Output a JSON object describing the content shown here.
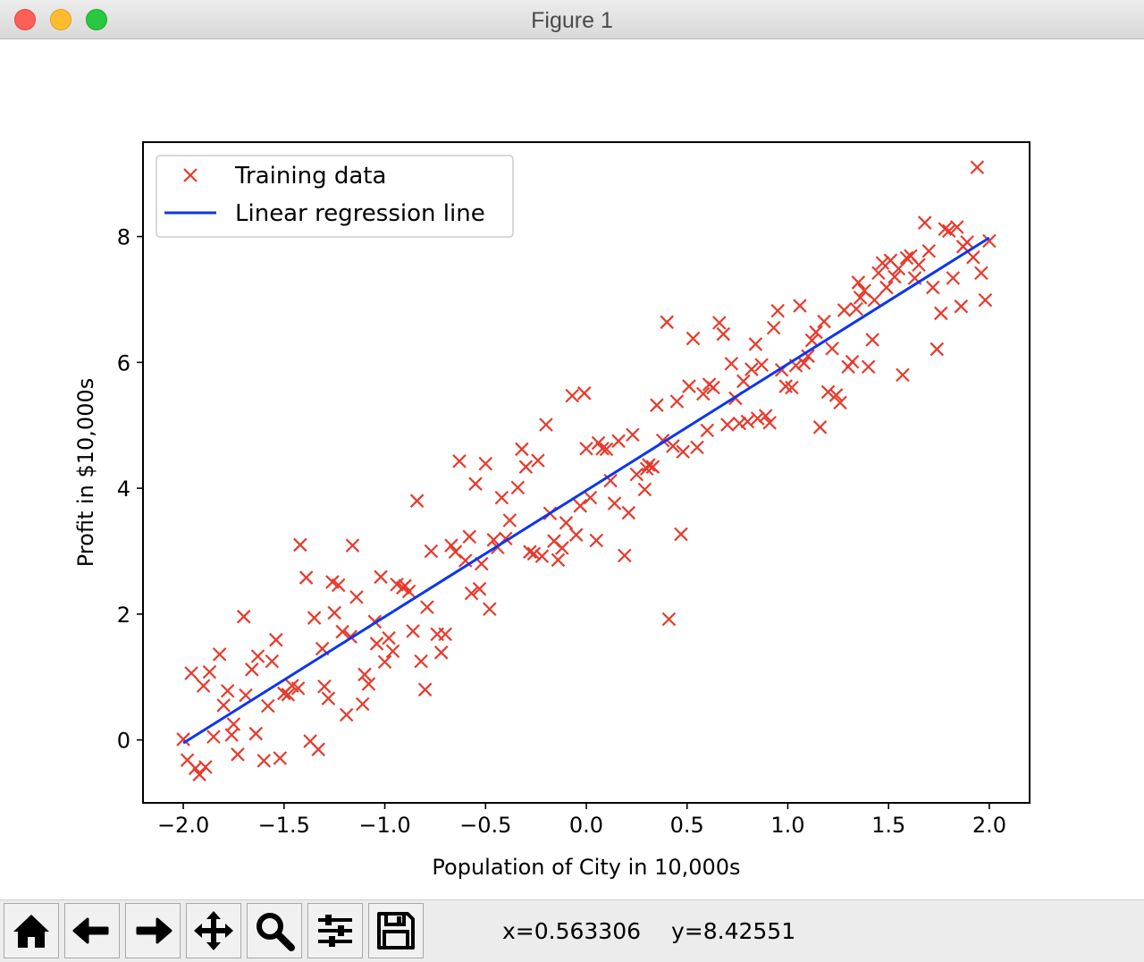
{
  "window": {
    "title": "Figure 1"
  },
  "toolbar": {
    "buttons": [
      {
        "icon": "home-icon"
      },
      {
        "icon": "back-arrow-icon"
      },
      {
        "icon": "forward-arrow-icon"
      },
      {
        "icon": "pan-icon"
      },
      {
        "icon": "zoom-icon"
      },
      {
        "icon": "subplots-config-icon"
      },
      {
        "icon": "save-icon"
      }
    ],
    "coord_x": "x=0.563306",
    "coord_y": "y=8.42551"
  },
  "chart_data": {
    "type": "scatter",
    "title": "",
    "xlabel": "Population of City in 10,000s",
    "ylabel": "Profit in $10,000s",
    "xlim": [
      -2.2,
      2.2
    ],
    "ylim": [
      -1.0,
      9.5
    ],
    "xticks": [
      -2.0,
      -1.5,
      -1.0,
      -0.5,
      0.0,
      0.5,
      1.0,
      1.5,
      2.0
    ],
    "xtick_labels": [
      "−2.0",
      "−1.5",
      "−1.0",
      "−0.5",
      "0.0",
      "0.5",
      "1.0",
      "1.5",
      "2.0"
    ],
    "yticks": [
      0,
      2,
      4,
      6,
      8
    ],
    "ytick_labels": [
      "0",
      "2",
      "4",
      "6",
      "8"
    ],
    "grid": false,
    "legend_position": "upper-left",
    "colors": {
      "scatter": "#e8392b",
      "line": "#0b36f0"
    },
    "series": [
      {
        "name": "Training data",
        "kind": "scatter",
        "marker": "x",
        "points": [
          [
            -2.0,
            0.01
          ],
          [
            -1.98,
            -0.32
          ],
          [
            -1.96,
            1.06
          ],
          [
            -1.94,
            -0.45
          ],
          [
            -1.92,
            -0.55
          ],
          [
            -1.9,
            0.86
          ],
          [
            -1.89,
            -0.43
          ],
          [
            -1.87,
            1.08
          ],
          [
            -1.85,
            0.05
          ],
          [
            -1.82,
            1.36
          ],
          [
            -1.8,
            0.55
          ],
          [
            -1.78,
            0.78
          ],
          [
            -1.76,
            0.08
          ],
          [
            -1.75,
            0.25
          ],
          [
            -1.73,
            -0.23
          ],
          [
            -1.7,
            1.96
          ],
          [
            -1.69,
            0.71
          ],
          [
            -1.66,
            1.12
          ],
          [
            -1.64,
            0.1
          ],
          [
            -1.63,
            1.33
          ],
          [
            -1.6,
            -0.33
          ],
          [
            -1.58,
            0.54
          ],
          [
            -1.56,
            1.25
          ],
          [
            -1.54,
            1.59
          ],
          [
            -1.52,
            -0.29
          ],
          [
            -1.5,
            0.74
          ],
          [
            -1.48,
            0.72
          ],
          [
            -1.46,
            0.86
          ],
          [
            -1.43,
            0.82
          ],
          [
            -1.42,
            3.1
          ],
          [
            -1.39,
            2.58
          ],
          [
            -1.37,
            -0.02
          ],
          [
            -1.35,
            1.94
          ],
          [
            -1.33,
            -0.15
          ],
          [
            -1.31,
            1.45
          ],
          [
            -1.3,
            0.85
          ],
          [
            -1.28,
            0.66
          ],
          [
            -1.26,
            2.51
          ],
          [
            -1.25,
            2.02
          ],
          [
            -1.23,
            2.46
          ],
          [
            -1.21,
            1.72
          ],
          [
            -1.19,
            0.4
          ],
          [
            -1.17,
            1.64
          ],
          [
            -1.16,
            3.09
          ],
          [
            -1.14,
            2.27
          ],
          [
            -1.11,
            0.57
          ],
          [
            -1.1,
            1.04
          ],
          [
            -1.08,
            0.89
          ],
          [
            -1.05,
            1.88
          ],
          [
            -1.04,
            1.53
          ],
          [
            -1.02,
            2.59
          ],
          [
            -1.0,
            1.24
          ],
          [
            -0.98,
            1.62
          ],
          [
            -0.96,
            1.41
          ],
          [
            -0.94,
            2.47
          ],
          [
            -0.91,
            2.42
          ],
          [
            -0.9,
            2.45
          ],
          [
            -0.88,
            2.36
          ],
          [
            -0.86,
            1.73
          ],
          [
            -0.84,
            3.8
          ],
          [
            -0.82,
            1.25
          ],
          [
            -0.8,
            0.8
          ],
          [
            -0.79,
            2.11
          ],
          [
            -0.77,
            3.0
          ],
          [
            -0.74,
            1.68
          ],
          [
            -0.72,
            1.39
          ],
          [
            -0.7,
            1.68
          ],
          [
            -0.67,
            3.09
          ],
          [
            -0.65,
            2.99
          ],
          [
            -0.63,
            4.43
          ],
          [
            -0.6,
            2.85
          ],
          [
            -0.58,
            3.23
          ],
          [
            -0.57,
            2.33
          ],
          [
            -0.55,
            4.07
          ],
          [
            -0.53,
            2.4
          ],
          [
            -0.52,
            2.8
          ],
          [
            -0.5,
            4.39
          ],
          [
            -0.48,
            2.08
          ],
          [
            -0.46,
            3.18
          ],
          [
            -0.44,
            3.06
          ],
          [
            -0.42,
            3.85
          ],
          [
            -0.4,
            3.2
          ],
          [
            -0.38,
            3.49
          ],
          [
            -0.34,
            4.01
          ],
          [
            -0.32,
            4.62
          ],
          [
            -0.3,
            4.34
          ],
          [
            -0.28,
            2.99
          ],
          [
            -0.26,
            2.96
          ],
          [
            -0.24,
            4.44
          ],
          [
            -0.22,
            2.92
          ],
          [
            -0.2,
            5.01
          ],
          [
            -0.18,
            3.6
          ],
          [
            -0.16,
            3.16
          ],
          [
            -0.14,
            2.86
          ],
          [
            -0.12,
            3.05
          ],
          [
            -0.1,
            3.45
          ],
          [
            -0.07,
            5.47
          ],
          [
            -0.05,
            3.26
          ],
          [
            -0.03,
            3.72
          ],
          [
            -0.01,
            5.51
          ],
          [
            0.0,
            4.63
          ],
          [
            0.02,
            3.85
          ],
          [
            0.05,
            3.17
          ],
          [
            0.06,
            4.72
          ],
          [
            0.08,
            4.63
          ],
          [
            0.1,
            4.62
          ],
          [
            0.12,
            4.12
          ],
          [
            0.14,
            3.76
          ],
          [
            0.16,
            4.75
          ],
          [
            0.19,
            2.93
          ],
          [
            0.21,
            3.61
          ],
          [
            0.23,
            4.85
          ],
          [
            0.25,
            4.22
          ],
          [
            0.29,
            3.98
          ],
          [
            0.3,
            4.31
          ],
          [
            0.31,
            4.37
          ],
          [
            0.33,
            4.34
          ],
          [
            0.35,
            5.32
          ],
          [
            0.38,
            4.76
          ],
          [
            0.4,
            6.64
          ],
          [
            0.41,
            1.92
          ],
          [
            0.43,
            4.67
          ],
          [
            0.45,
            5.38
          ],
          [
            0.47,
            3.27
          ],
          [
            0.48,
            4.58
          ],
          [
            0.51,
            5.62
          ],
          [
            0.53,
            6.38
          ],
          [
            0.55,
            4.65
          ],
          [
            0.58,
            5.5
          ],
          [
            0.6,
            4.92
          ],
          [
            0.61,
            5.65
          ],
          [
            0.63,
            5.6
          ],
          [
            0.66,
            6.63
          ],
          [
            0.68,
            6.45
          ],
          [
            0.7,
            5.01
          ],
          [
            0.72,
            5.98
          ],
          [
            0.74,
            5.43
          ],
          [
            0.76,
            5.03
          ],
          [
            0.78,
            5.7
          ],
          [
            0.8,
            5.06
          ],
          [
            0.82,
            5.89
          ],
          [
            0.84,
            6.29
          ],
          [
            0.85,
            5.11
          ],
          [
            0.87,
            5.96
          ],
          [
            0.89,
            5.15
          ],
          [
            0.91,
            5.04
          ],
          [
            0.93,
            6.55
          ],
          [
            0.95,
            6.82
          ],
          [
            0.97,
            5.88
          ],
          [
            0.99,
            5.62
          ],
          [
            1.02,
            5.6
          ],
          [
            1.04,
            5.95
          ],
          [
            1.06,
            6.9
          ],
          [
            1.08,
            5.99
          ],
          [
            1.1,
            6.1
          ],
          [
            1.12,
            6.35
          ],
          [
            1.14,
            6.48
          ],
          [
            1.16,
            4.97
          ],
          [
            1.18,
            6.65
          ],
          [
            1.2,
            5.53
          ],
          [
            1.22,
            6.22
          ],
          [
            1.24,
            5.48
          ],
          [
            1.26,
            5.36
          ],
          [
            1.28,
            6.83
          ],
          [
            1.3,
            5.93
          ],
          [
            1.32,
            6.01
          ],
          [
            1.34,
            6.85
          ],
          [
            1.35,
            7.27
          ],
          [
            1.36,
            7.03
          ],
          [
            1.38,
            7.14
          ],
          [
            1.4,
            5.93
          ],
          [
            1.42,
            6.36
          ],
          [
            1.43,
            6.99
          ],
          [
            1.45,
            7.42
          ],
          [
            1.47,
            7.58
          ],
          [
            1.49,
            7.19
          ],
          [
            1.51,
            7.62
          ],
          [
            1.53,
            7.36
          ],
          [
            1.55,
            7.49
          ],
          [
            1.57,
            5.8
          ],
          [
            1.59,
            7.66
          ],
          [
            1.61,
            7.69
          ],
          [
            1.63,
            7.34
          ],
          [
            1.65,
            7.55
          ],
          [
            1.68,
            8.22
          ],
          [
            1.7,
            7.77
          ],
          [
            1.72,
            7.19
          ],
          [
            1.74,
            6.21
          ],
          [
            1.76,
            6.78
          ],
          [
            1.78,
            8.12
          ],
          [
            1.8,
            8.09
          ],
          [
            1.82,
            7.34
          ],
          [
            1.84,
            8.15
          ],
          [
            1.86,
            6.89
          ],
          [
            1.87,
            7.84
          ],
          [
            1.89,
            7.91
          ],
          [
            1.92,
            7.67
          ],
          [
            1.94,
            9.1
          ],
          [
            1.96,
            7.42
          ],
          [
            1.98,
            6.99
          ],
          [
            2.0,
            7.93
          ]
        ]
      },
      {
        "name": "Linear regression line",
        "kind": "line",
        "points": [
          [
            -2.0,
            -0.05
          ],
          [
            2.0,
            7.98
          ]
        ]
      }
    ]
  }
}
